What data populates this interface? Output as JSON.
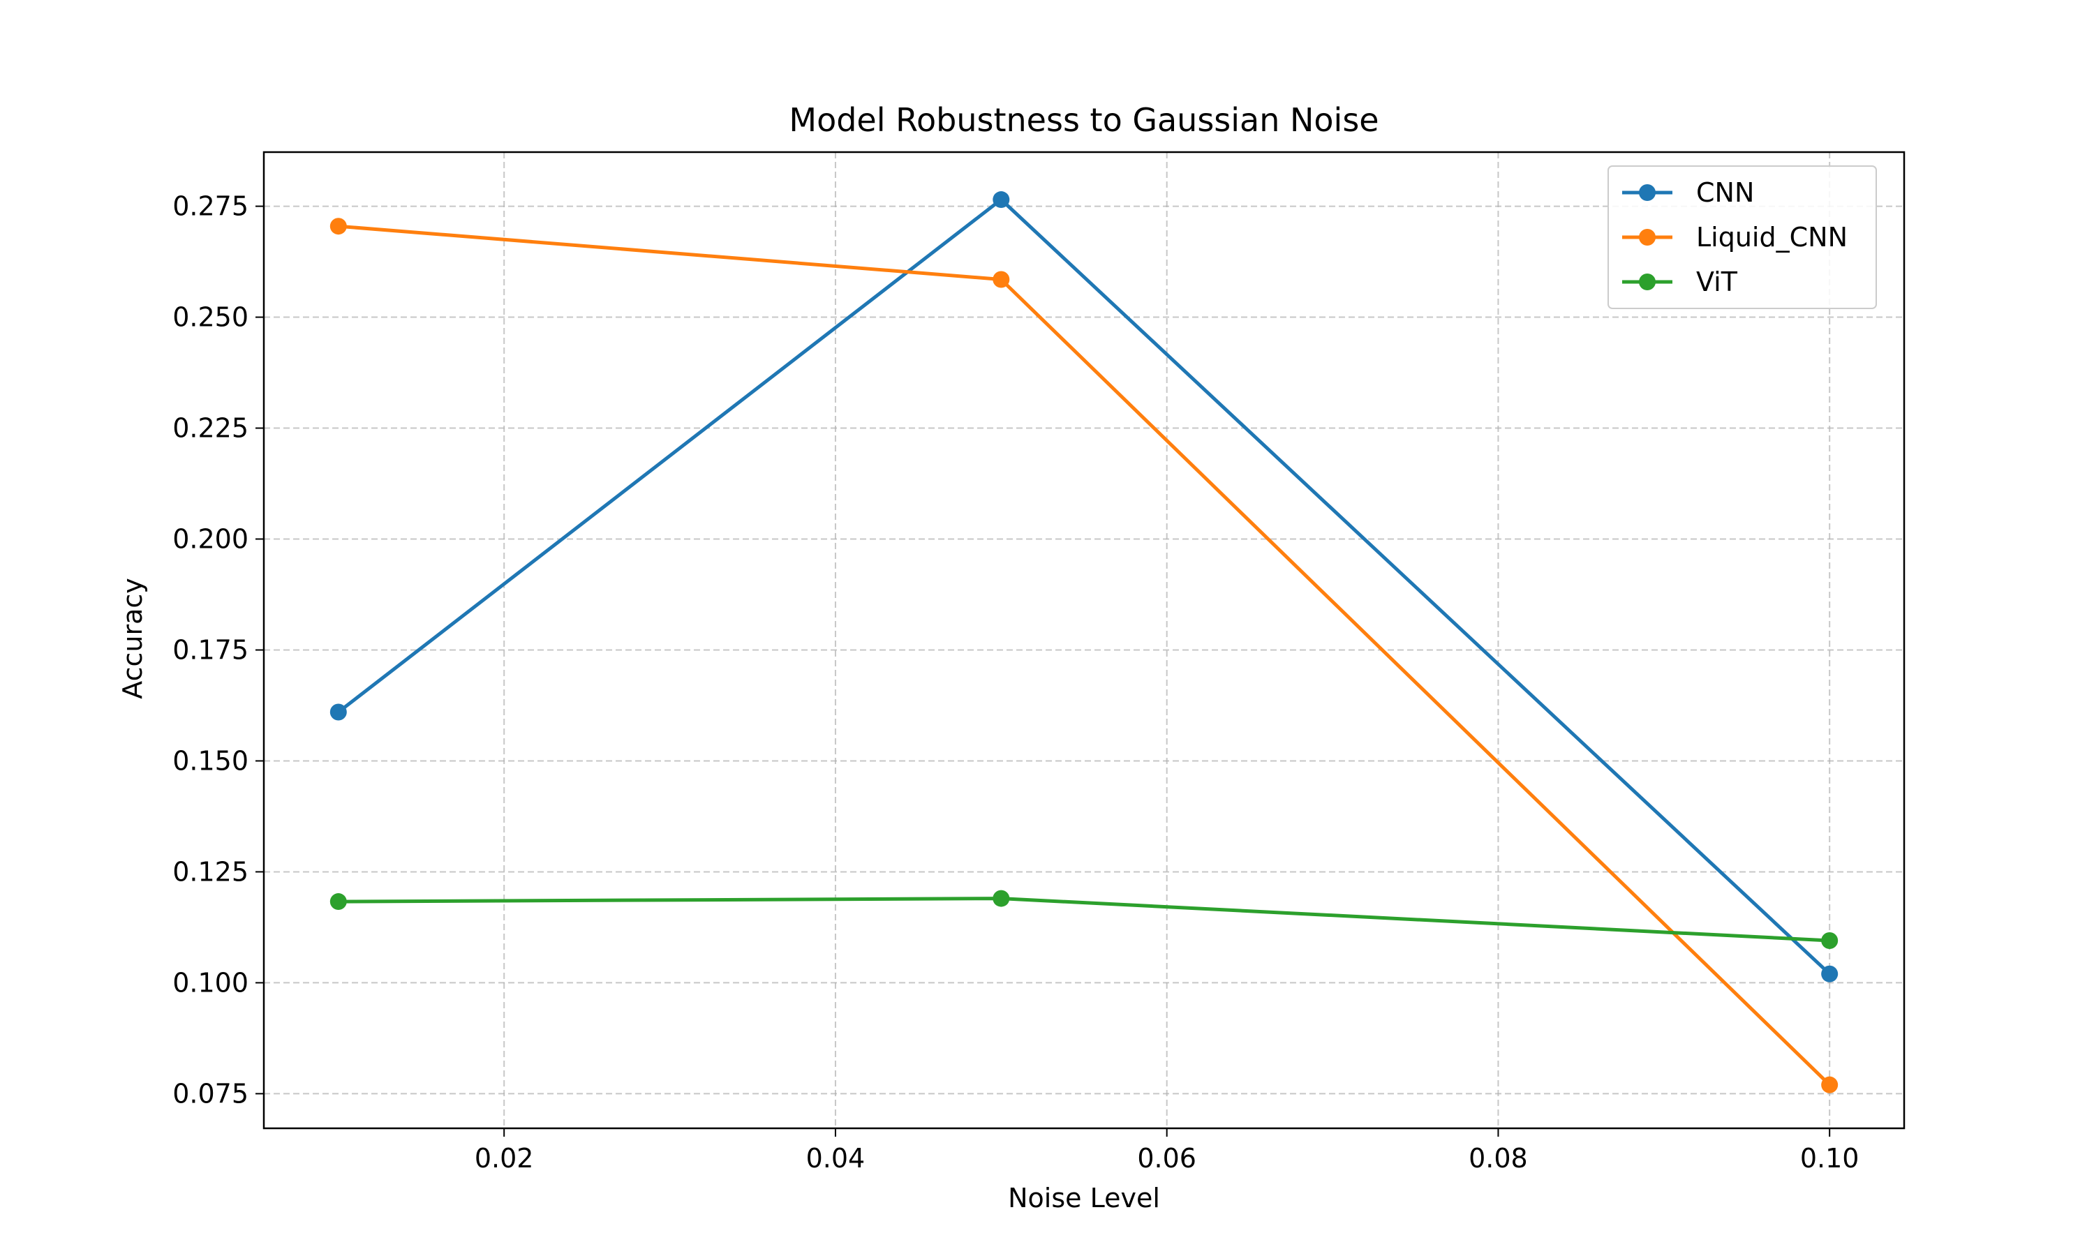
{
  "chart_data": {
    "type": "line",
    "title": "Model Robustness to Gaussian Noise",
    "xlabel": "Noise Level",
    "ylabel": "Accuracy",
    "x": [
      0.01,
      0.05,
      0.1
    ],
    "xlim": [
      0.0055,
      0.1045
    ],
    "ylim": [
      0.0672,
      0.2872
    ],
    "xticks": [
      0.02,
      0.04,
      0.06,
      0.08,
      0.1
    ],
    "xtick_labels": [
      "0.02",
      "0.04",
      "0.06",
      "0.08",
      "0.10"
    ],
    "yticks": [
      0.075,
      0.1,
      0.125,
      0.15,
      0.175,
      0.2,
      0.225,
      0.25,
      0.275
    ],
    "ytick_labels": [
      "0.075",
      "0.100",
      "0.125",
      "0.150",
      "0.175",
      "0.200",
      "0.225",
      "0.250",
      "0.275"
    ],
    "grid": true,
    "legend_position": "top-right",
    "series": [
      {
        "name": "CNN",
        "color": "#1f77b4",
        "values": [
          0.161,
          0.2765,
          0.102
        ],
        "marker": "circle"
      },
      {
        "name": "Liquid_CNN",
        "color": "#ff7f0e",
        "values": [
          0.2705,
          0.2585,
          0.077
        ],
        "marker": "circle"
      },
      {
        "name": "ViT",
        "color": "#2ca02c",
        "values": [
          0.1183,
          0.119,
          0.1095
        ],
        "marker": "circle"
      }
    ]
  }
}
